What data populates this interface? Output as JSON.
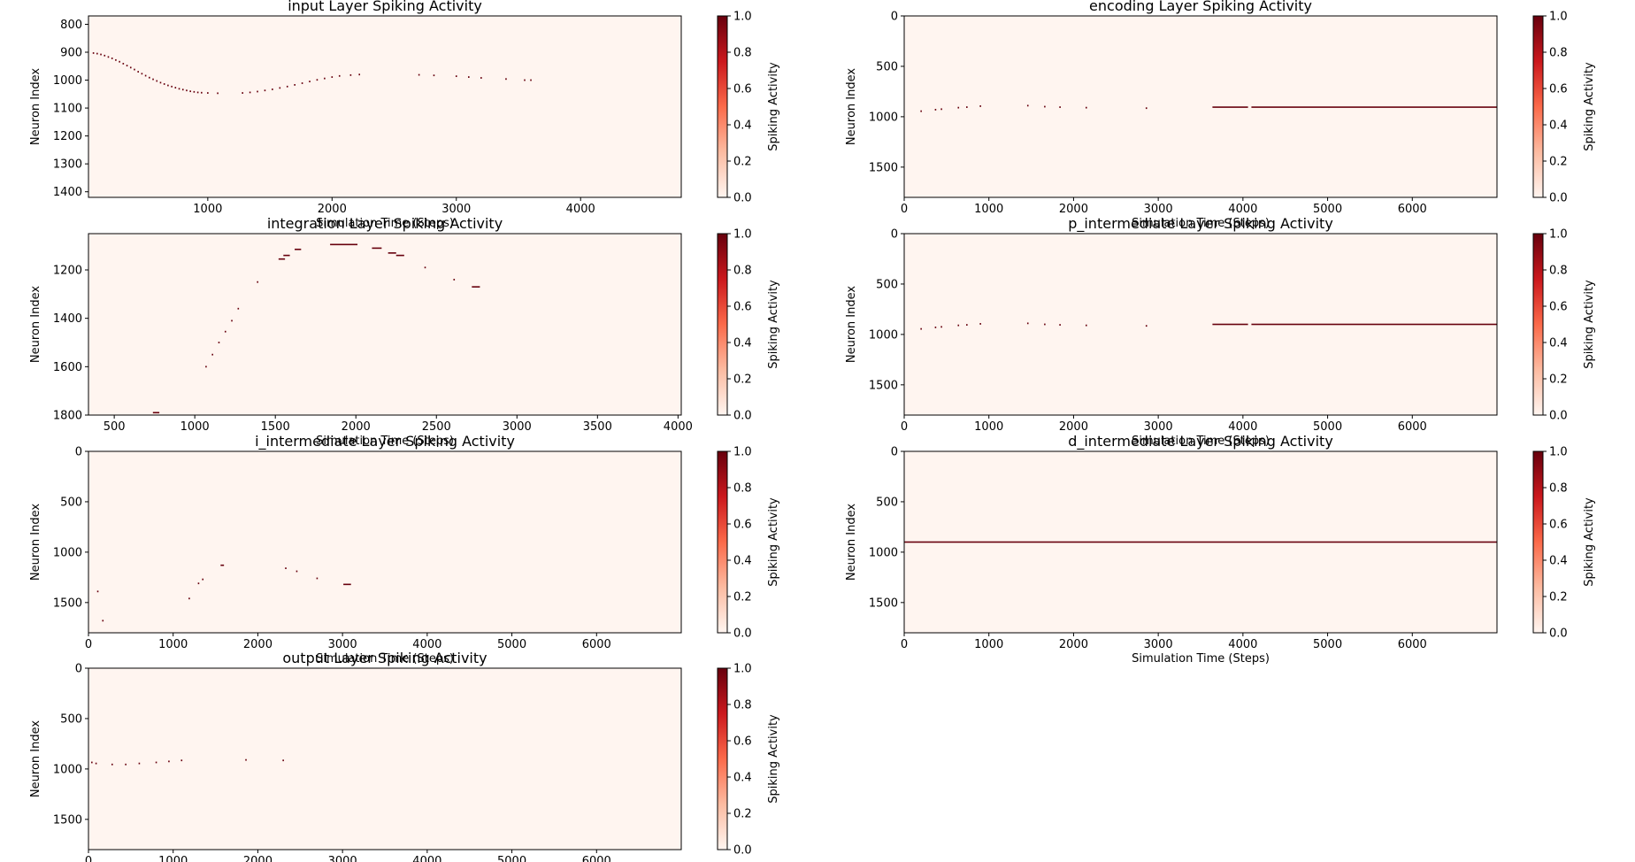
{
  "colorbar": {
    "label": "Spiking Activity",
    "ticks": [
      0.0,
      0.2,
      0.4,
      0.6,
      0.8,
      1.0
    ],
    "tick_labels": [
      "0.0",
      "0.2",
      "0.4",
      "0.6",
      "0.8",
      "1.0"
    ],
    "colors": [
      "#fff5f0",
      "#fcbba1",
      "#fb6a4a",
      "#cb181d",
      "#67000d"
    ]
  },
  "chart_data": [
    {
      "type": "heatmap",
      "title": "input Layer Spiking Activity",
      "xlabel": "Simulation Time (Steps)",
      "ylabel": "Neuron Index",
      "xlim": [
        40,
        4810
      ],
      "ylim": [
        770,
        1420
      ],
      "y_inverted": true,
      "xticks": [
        1000,
        2000,
        3000,
        4000
      ],
      "yticks": [
        800,
        900,
        1000,
        1100,
        1200,
        1300,
        1400
      ],
      "spikes": [
        [
          80,
          903
        ],
        [
          110,
          905
        ],
        [
          140,
          908
        ],
        [
          170,
          912
        ],
        [
          200,
          917
        ],
        [
          230,
          922
        ],
        [
          260,
          928
        ],
        [
          290,
          934
        ],
        [
          320,
          941
        ],
        [
          350,
          948
        ],
        [
          380,
          955
        ],
        [
          410,
          962
        ],
        [
          440,
          970
        ],
        [
          470,
          977
        ],
        [
          500,
          984
        ],
        [
          530,
          991
        ],
        [
          560,
          997
        ],
        [
          590,
          1003
        ],
        [
          620,
          1009
        ],
        [
          650,
          1014
        ],
        [
          680,
          1019
        ],
        [
          710,
          1023
        ],
        [
          740,
          1027
        ],
        [
          770,
          1031
        ],
        [
          800,
          1034
        ],
        [
          830,
          1037
        ],
        [
          860,
          1040
        ],
        [
          890,
          1042
        ],
        [
          920,
          1044
        ],
        [
          950,
          1045
        ],
        [
          1000,
          1046
        ],
        [
          1080,
          1047
        ],
        [
          1280,
          1046
        ],
        [
          1340,
          1044
        ],
        [
          1400,
          1041
        ],
        [
          1460,
          1037
        ],
        [
          1520,
          1033
        ],
        [
          1580,
          1028
        ],
        [
          1640,
          1023
        ],
        [
          1700,
          1017
        ],
        [
          1760,
          1011
        ],
        [
          1820,
          1005
        ],
        [
          1880,
          999
        ],
        [
          1940,
          994
        ],
        [
          2000,
          989
        ],
        [
          2060,
          985
        ],
        [
          2150,
          982
        ],
        [
          2220,
          980
        ],
        [
          2700,
          981
        ],
        [
          2820,
          983
        ],
        [
          3000,
          986
        ],
        [
          3100,
          989
        ],
        [
          3200,
          992
        ],
        [
          3400,
          996
        ],
        [
          3550,
          1000
        ],
        [
          3600,
          1000
        ]
      ]
    },
    {
      "type": "heatmap",
      "title": "encoding Layer Spiking Activity",
      "xlabel": "Simulation Time (Steps)",
      "ylabel": "Neuron Index",
      "xlim": [
        0,
        7000
      ],
      "ylim": [
        0,
        1800
      ],
      "y_inverted": true,
      "xticks": [
        0,
        1000,
        2000,
        3000,
        4000,
        5000,
        6000
      ],
      "yticks": [
        0,
        500,
        1000,
        1500
      ],
      "spikes": [
        [
          200,
          945
        ],
        [
          370,
          930
        ],
        [
          440,
          925
        ],
        [
          640,
          910
        ],
        [
          740,
          905
        ],
        [
          900,
          895
        ],
        [
          1460,
          890
        ],
        [
          1660,
          900
        ],
        [
          1840,
          905
        ],
        [
          2150,
          910
        ],
        [
          2860,
          915
        ]
      ],
      "lines": [
        [
          3640,
          4060,
          905
        ],
        [
          4100,
          7000,
          905
        ]
      ]
    },
    {
      "type": "heatmap",
      "title": "integration Layer Spiking Activity",
      "xlabel": "Simulation Time (Steps)",
      "ylabel": "Neuron Index",
      "xlim": [
        340,
        4020
      ],
      "ylim": [
        1050,
        1800
      ],
      "y_inverted": true,
      "xticks": [
        500,
        1000,
        1500,
        2000,
        2500,
        3000,
        3500,
        4000
      ],
      "yticks": [
        1200,
        1400,
        1600,
        1800
      ],
      "spikes": [
        [
          1070,
          1600
        ],
        [
          1110,
          1550
        ],
        [
          1150,
          1500
        ],
        [
          1190,
          1455
        ],
        [
          1230,
          1410
        ],
        [
          1270,
          1360
        ],
        [
          1390,
          1250
        ],
        [
          2430,
          1190
        ],
        [
          2610,
          1240
        ]
      ],
      "lines": [
        [
          740,
          780,
          1790
        ],
        [
          1520,
          1560,
          1155
        ],
        [
          1550,
          1590,
          1140
        ],
        [
          1620,
          1660,
          1115
        ],
        [
          1840,
          2010,
          1095
        ],
        [
          2100,
          2160,
          1110
        ],
        [
          2200,
          2250,
          1130
        ],
        [
          2250,
          2300,
          1140
        ],
        [
          2720,
          2770,
          1270
        ]
      ]
    },
    {
      "type": "heatmap",
      "title": "p_intermediate Layer Spiking Activity",
      "xlabel": "Simulation Time (Steps)",
      "ylabel": "Neuron Index",
      "xlim": [
        0,
        7000
      ],
      "ylim": [
        0,
        1800
      ],
      "y_inverted": true,
      "xticks": [
        0,
        1000,
        2000,
        3000,
        4000,
        5000,
        6000
      ],
      "yticks": [
        0,
        500,
        1000,
        1500
      ],
      "spikes": [
        [
          200,
          945
        ],
        [
          370,
          930
        ],
        [
          440,
          925
        ],
        [
          640,
          910
        ],
        [
          740,
          905
        ],
        [
          900,
          895
        ],
        [
          1460,
          890
        ],
        [
          1660,
          900
        ],
        [
          1840,
          905
        ],
        [
          2150,
          910
        ],
        [
          2860,
          915
        ]
      ],
      "lines": [
        [
          3640,
          4060,
          900
        ],
        [
          4100,
          7000,
          900
        ]
      ]
    },
    {
      "type": "heatmap",
      "title": "i_intermediate Layer Spiking Activity",
      "xlabel": "Simulation Time (Steps)",
      "ylabel": "Neuron Index",
      "xlim": [
        0,
        7000
      ],
      "ylim": [
        0,
        1800
      ],
      "y_inverted": true,
      "xticks": [
        0,
        1000,
        2000,
        3000,
        4000,
        5000,
        6000
      ],
      "yticks": [
        0,
        500,
        1000,
        1500
      ],
      "spikes": [
        [
          110,
          1390
        ],
        [
          170,
          1680
        ],
        [
          1190,
          1460
        ],
        [
          1300,
          1310
        ],
        [
          1350,
          1270
        ],
        [
          2330,
          1160
        ],
        [
          2460,
          1190
        ],
        [
          2700,
          1260
        ]
      ],
      "lines": [
        [
          1560,
          1600,
          1130
        ],
        [
          3010,
          3100,
          1320
        ]
      ]
    },
    {
      "type": "heatmap",
      "title": "d_intermediate Layer Spiking Activity",
      "xlabel": "Simulation Time (Steps)",
      "ylabel": "Neuron Index",
      "xlim": [
        0,
        7000
      ],
      "ylim": [
        0,
        1800
      ],
      "y_inverted": true,
      "xticks": [
        0,
        1000,
        2000,
        3000,
        4000,
        5000,
        6000
      ],
      "yticks": [
        0,
        500,
        1000,
        1500
      ],
      "spikes": [],
      "lines": [
        [
          0,
          7000,
          900
        ]
      ]
    },
    {
      "type": "heatmap",
      "title": "output Layer Spiking Activity",
      "xlabel": "Simulation Time (Steps)",
      "ylabel": "Neuron Index",
      "xlim": [
        0,
        7000
      ],
      "ylim": [
        0,
        1800
      ],
      "y_inverted": true,
      "xticks": [
        0,
        1000,
        2000,
        3000,
        4000,
        5000,
        6000
      ],
      "yticks": [
        0,
        500,
        1000,
        1500
      ],
      "spikes": [
        [
          40,
          935
        ],
        [
          90,
          945
        ],
        [
          280,
          955
        ],
        [
          440,
          955
        ],
        [
          600,
          945
        ],
        [
          800,
          935
        ],
        [
          950,
          925
        ],
        [
          1100,
          915
        ],
        [
          1860,
          910
        ],
        [
          2300,
          915
        ]
      ]
    }
  ]
}
